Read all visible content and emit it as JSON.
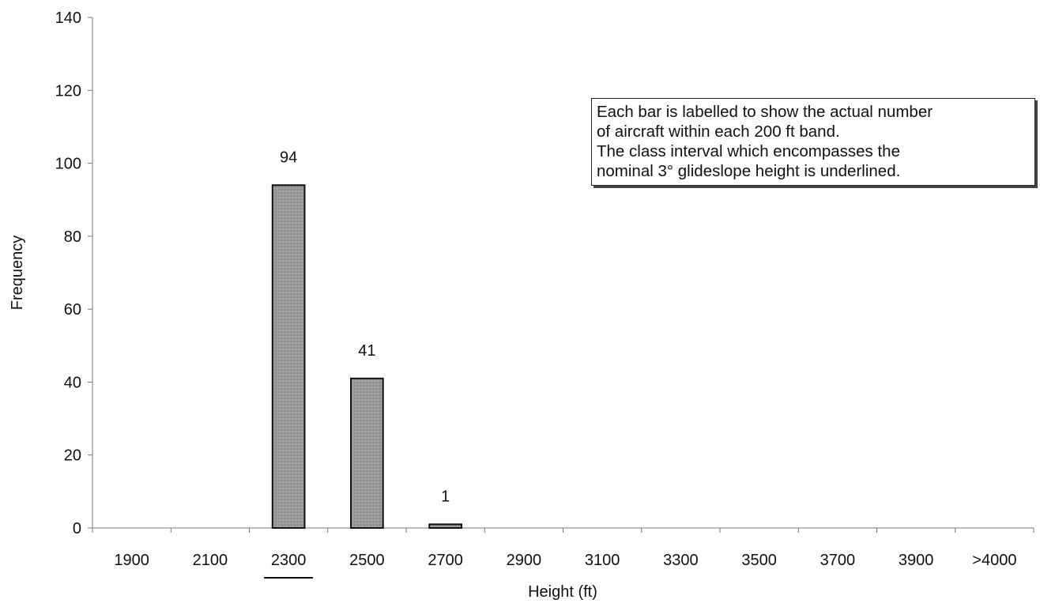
{
  "chart_data": {
    "type": "bar",
    "categories": [
      "1900",
      "2100",
      "2300",
      "2500",
      "2700",
      "2900",
      "3100",
      "3300",
      "3500",
      "3700",
      "3900",
      ">4000"
    ],
    "values": [
      0,
      0,
      94,
      41,
      1,
      0,
      0,
      0,
      0,
      0,
      0,
      0
    ],
    "data_labels": [
      "",
      "",
      "94",
      "41",
      "1",
      "",
      "",
      "",
      "",
      "",
      "",
      ""
    ],
    "highlighted_category": "2300",
    "xlabel": "Height (ft)",
    "ylabel": "Frequency",
    "ylim": [
      0,
      140
    ],
    "yticks": [
      "0",
      "20",
      "40",
      "60",
      "80",
      "100",
      "120",
      "140"
    ],
    "grid": false,
    "bar_color": "#8c8c8c",
    "annotation": {
      "lines": [
        "Each bar is labelled to show the actual number",
        "of aircraft within each 200 ft band.",
        "The class interval which encompasses the",
        "nominal 3° glideslope height is underlined."
      ],
      "placement": "top-right"
    }
  }
}
